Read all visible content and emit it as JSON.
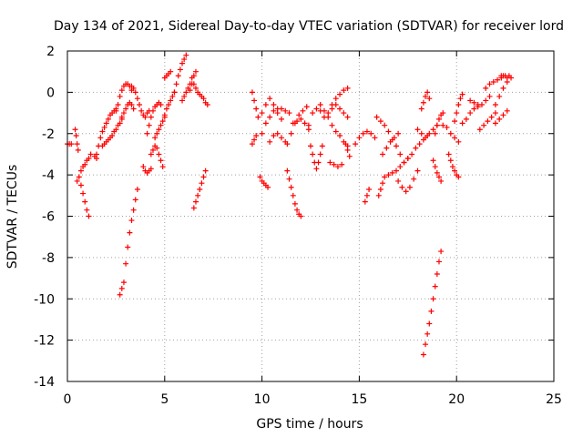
{
  "chart_data": {
    "type": "scatter",
    "title": "Day 134 of 2021, Sidereal Day-to-day VTEC variation (SDTVAR) for receiver lord",
    "xlabel": "GPS time / hours",
    "ylabel": "SDTVAR / TECUs",
    "xlim": [
      0,
      25
    ],
    "ylim": [
      -14,
      2
    ],
    "xticks": [
      0,
      5,
      10,
      15,
      20,
      25
    ],
    "yticks": [
      -14,
      -12,
      -10,
      -8,
      -6,
      -4,
      -2,
      0,
      2
    ],
    "xtick_labels": [
      "0",
      "5",
      "10",
      "15",
      "20",
      "25"
    ],
    "ytick_labels": [
      "-14",
      "-12",
      "-10",
      "-8",
      "-6",
      "-4",
      "-2",
      "0",
      "2"
    ],
    "grid": true,
    "marker": "+",
    "color": "#ff0000",
    "series": [
      {
        "name": "s1",
        "x": [
          0.0,
          0.1,
          0.2
        ],
        "y": [
          -2.5,
          -2.5,
          -2.5
        ]
      },
      {
        "name": "s2",
        "x": [
          0.4,
          0.45,
          0.5,
          0.55
        ],
        "y": [
          -1.8,
          -2.1,
          -2.5,
          -2.8
        ]
      },
      {
        "name": "s3",
        "x": [
          0.5,
          0.6,
          0.7,
          0.8,
          0.9,
          1.0,
          1.1
        ],
        "y": [
          -4.3,
          -4.1,
          -4.5,
          -4.9,
          -5.3,
          -5.7,
          -6.0
        ]
      },
      {
        "name": "s4",
        "x": [
          0.7,
          0.8,
          0.9,
          1.0,
          1.1,
          1.2,
          1.4,
          1.5
        ],
        "y": [
          -3.8,
          -3.6,
          -3.5,
          -3.3,
          -3.2,
          -3.0,
          -3.1,
          -3.0
        ]
      },
      {
        "name": "s5",
        "x": [
          1.5,
          1.6,
          1.7,
          1.8,
          1.9,
          2.0,
          2.1,
          2.2,
          2.3,
          2.4,
          2.5
        ],
        "y": [
          -3.2,
          -2.6,
          -2.2,
          -1.9,
          -1.7,
          -1.5,
          -1.3,
          -1.1,
          -1.0,
          -0.9,
          -0.8
        ]
      },
      {
        "name": "s6",
        "x": [
          1.8,
          1.9,
          2.0,
          2.1,
          2.2,
          2.3,
          2.4,
          2.5,
          2.6,
          2.7,
          2.8
        ],
        "y": [
          -2.6,
          -2.5,
          -2.4,
          -2.3,
          -2.2,
          -2.1,
          -1.9,
          -1.8,
          -1.6,
          -1.5,
          -1.3
        ]
      },
      {
        "name": "s7",
        "x": [
          2.5,
          2.6,
          2.7,
          2.8,
          2.9,
          3.0,
          3.1,
          3.2,
          3.3
        ],
        "y": [
          -0.9,
          -0.6,
          -0.2,
          0.1,
          0.3,
          0.4,
          0.4,
          0.3,
          0.1
        ]
      },
      {
        "name": "s8",
        "x": [
          2.7,
          2.8,
          2.9,
          3.0,
          3.1,
          3.2,
          3.3,
          3.4,
          3.5,
          3.6
        ],
        "y": [
          -9.8,
          -9.5,
          -9.2,
          -8.3,
          -7.5,
          -6.8,
          -6.2,
          -5.7,
          -5.2,
          -4.7
        ]
      },
      {
        "name": "s9",
        "x": [
          2.8,
          2.9,
          3.0,
          3.1,
          3.2,
          3.3,
          3.4
        ],
        "y": [
          -1.2,
          -1.0,
          -0.8,
          -0.6,
          -0.5,
          -0.6,
          -0.8
        ]
      },
      {
        "name": "s10",
        "x": [
          3.3,
          3.4,
          3.5,
          3.6,
          3.7,
          3.8,
          3.9,
          4.0,
          4.1,
          4.2
        ],
        "y": [
          0.3,
          0.2,
          0.0,
          -0.3,
          -0.6,
          -0.9,
          -1.1,
          -1.2,
          -1.0,
          -0.9
        ]
      },
      {
        "name": "s11",
        "x": [
          3.9,
          4.0,
          4.1,
          4.2,
          4.3
        ],
        "y": [
          -3.6,
          -3.8,
          -3.9,
          -3.8,
          -3.7
        ]
      },
      {
        "name": "s12",
        "x": [
          4.1,
          4.2,
          4.3,
          4.4,
          4.5,
          4.6,
          4.7,
          4.8
        ],
        "y": [
          -2.0,
          -1.6,
          -1.2,
          -0.9,
          -0.7,
          -0.6,
          -0.5,
          -0.6
        ]
      },
      {
        "name": "s13",
        "x": [
          4.3,
          4.4,
          4.5,
          4.6,
          4.7,
          4.8,
          4.9
        ],
        "y": [
          -3.0,
          -2.8,
          -2.6,
          -2.7,
          -3.0,
          -3.3,
          -3.6
        ]
      },
      {
        "name": "s14",
        "x": [
          4.5,
          4.6,
          4.7,
          4.8,
          4.9,
          5.0
        ],
        "y": [
          -2.2,
          -2.0,
          -1.8,
          -1.6,
          -1.4,
          -1.2
        ]
      },
      {
        "name": "s15",
        "x": [
          5.0,
          5.1,
          5.2,
          5.3,
          5.4,
          5.5
        ],
        "y": [
          -1.1,
          -0.8,
          -0.6,
          -0.4,
          -0.2,
          0.0
        ]
      },
      {
        "name": "s16",
        "x": [
          5.0,
          5.1,
          5.2,
          5.3
        ],
        "y": [
          0.7,
          0.8,
          0.9,
          1.0
        ]
      },
      {
        "name": "s17",
        "x": [
          5.5,
          5.6,
          5.7,
          5.8,
          5.9,
          6.0,
          6.1
        ],
        "y": [
          0.0,
          0.4,
          0.8,
          1.1,
          1.4,
          1.6,
          1.8
        ]
      },
      {
        "name": "s18",
        "x": [
          5.9,
          6.0,
          6.1,
          6.2,
          6.3,
          6.4
        ],
        "y": [
          -0.4,
          -0.2,
          0.0,
          0.2,
          0.4,
          0.7
        ]
      },
      {
        "name": "s19",
        "x": [
          6.3,
          6.4,
          6.5,
          6.6
        ],
        "y": [
          0.1,
          0.4,
          0.8,
          1.0
        ]
      },
      {
        "name": "s20",
        "x": [
          6.5,
          6.6,
          6.7,
          6.8,
          6.9,
          7.0,
          7.1,
          7.2
        ],
        "y": [
          0.4,
          0.2,
          0.0,
          -0.1,
          -0.2,
          -0.3,
          -0.5,
          -0.6
        ]
      },
      {
        "name": "s21",
        "x": [
          6.5,
          6.6,
          6.7,
          6.8,
          6.9,
          7.0,
          7.1
        ],
        "y": [
          -5.6,
          -5.3,
          -5.0,
          -4.7,
          -4.4,
          -4.1,
          -3.8
        ]
      },
      {
        "name": "s22",
        "x": [
          9.5,
          9.6,
          9.7
        ],
        "y": [
          -2.5,
          -2.3,
          -2.1
        ]
      },
      {
        "name": "s23",
        "x": [
          9.5,
          9.6,
          9.7,
          9.8
        ],
        "y": [
          0.0,
          -0.4,
          -0.8,
          -1.2
        ]
      },
      {
        "name": "s24",
        "x": [
          9.9,
          10.0,
          10.1,
          10.2,
          10.3
        ],
        "y": [
          -4.1,
          -4.3,
          -4.4,
          -4.5,
          -4.6
        ]
      },
      {
        "name": "s25",
        "x": [
          10.0,
          10.2,
          10.4,
          10.6,
          10.8,
          11.0,
          11.2,
          11.4
        ],
        "y": [
          -2.0,
          -1.5,
          -1.2,
          -0.9,
          -0.8,
          -0.8,
          -0.9,
          -1.0
        ]
      },
      {
        "name": "s26",
        "x": [
          10.0,
          10.2,
          10.4,
          10.6,
          10.8,
          11.0
        ],
        "y": [
          -1.0,
          -0.6,
          -0.3,
          -0.6,
          -1.0,
          -1.3
        ]
      },
      {
        "name": "s27",
        "x": [
          10.4,
          10.6,
          10.8,
          11.0,
          11.2
        ],
        "y": [
          -2.4,
          -2.1,
          -2.0,
          -2.2,
          -2.4
        ]
      },
      {
        "name": "s28",
        "x": [
          11.3,
          11.4,
          11.5,
          11.6,
          11.7,
          11.8,
          11.9,
          12.0
        ],
        "y": [
          -3.8,
          -4.2,
          -4.6,
          -5.0,
          -5.4,
          -5.7,
          -5.9,
          -6.0
        ]
      },
      {
        "name": "s29",
        "x": [
          11.3,
          11.5,
          11.7,
          11.9,
          12.1,
          12.3
        ],
        "y": [
          -2.5,
          -2.0,
          -1.5,
          -1.1,
          -0.9,
          -0.7
        ]
      },
      {
        "name": "s30",
        "x": [
          11.6,
          11.8,
          12.0,
          12.2,
          12.4
        ],
        "y": [
          -1.5,
          -1.4,
          -1.3,
          -1.5,
          -1.8
        ]
      },
      {
        "name": "s31",
        "x": [
          12.4,
          12.6,
          12.8,
          13.0,
          13.2
        ],
        "y": [
          -1.6,
          -1.0,
          -0.8,
          -0.9,
          -1.2
        ]
      },
      {
        "name": "s32",
        "x": [
          12.5,
          12.6,
          12.7,
          12.8,
          12.9,
          13.0,
          13.1
        ],
        "y": [
          -2.6,
          -3.0,
          -3.4,
          -3.7,
          -3.4,
          -3.0,
          -2.6
        ]
      },
      {
        "name": "s33",
        "x": [
          13.0,
          13.2,
          13.4,
          13.6,
          13.8,
          14.0,
          14.2,
          14.4
        ],
        "y": [
          -0.6,
          -0.9,
          -1.2,
          -1.6,
          -1.9,
          -2.1,
          -2.4,
          -2.6
        ]
      },
      {
        "name": "s34",
        "x": [
          13.4,
          13.6,
          13.8,
          14.0,
          14.2,
          14.4
        ],
        "y": [
          -1.0,
          -0.8,
          -0.6,
          -0.8,
          -1.0,
          -1.2
        ]
      },
      {
        "name": "s35",
        "x": [
          13.6,
          13.8,
          14.0,
          14.2,
          14.4
        ],
        "y": [
          -0.6,
          -0.3,
          -0.1,
          0.1,
          0.2
        ]
      },
      {
        "name": "s36",
        "x": [
          13.5,
          13.7,
          13.9,
          14.1
        ],
        "y": [
          -3.4,
          -3.5,
          -3.6,
          -3.5
        ]
      },
      {
        "name": "s37",
        "x": [
          14.3,
          14.4,
          14.5
        ],
        "y": [
          -2.5,
          -2.8,
          -3.1
        ]
      },
      {
        "name": "s38",
        "x": [
          14.8,
          15.0,
          15.2,
          15.4,
          15.6,
          15.8
        ],
        "y": [
          -2.5,
          -2.2,
          -2.0,
          -1.9,
          -2.0,
          -2.2
        ]
      },
      {
        "name": "s39",
        "x": [
          15.3,
          15.4,
          15.5
        ],
        "y": [
          -5.3,
          -5.0,
          -4.7
        ]
      },
      {
        "name": "s40",
        "x": [
          16.0,
          16.1,
          16.2,
          16.3
        ],
        "y": [
          -5.0,
          -4.7,
          -4.4,
          -4.1
        ]
      },
      {
        "name": "s41",
        "x": [
          15.9,
          16.1,
          16.3,
          16.5,
          16.7,
          16.9,
          17.1,
          17.3
        ],
        "y": [
          -1.2,
          -1.4,
          -1.6,
          -1.9,
          -2.3,
          -2.6,
          -3.0,
          -3.4
        ]
      },
      {
        "name": "s42",
        "x": [
          16.2,
          16.4,
          16.6,
          16.8,
          17.0
        ],
        "y": [
          -3.0,
          -2.7,
          -2.4,
          -2.2,
          -2.0
        ]
      },
      {
        "name": "s43",
        "x": [
          16.5,
          16.7,
          16.9,
          17.1,
          17.3,
          17.5
        ],
        "y": [
          -4.0,
          -3.9,
          -3.8,
          -3.6,
          -3.4,
          -3.2
        ]
      },
      {
        "name": "s44",
        "x": [
          17.0,
          17.2,
          17.4,
          17.6,
          17.8,
          18.0
        ],
        "y": [
          -4.3,
          -4.6,
          -4.8,
          -4.6,
          -4.2,
          -3.8
        ]
      },
      {
        "name": "s45",
        "x": [
          17.5,
          17.7,
          17.9,
          18.1,
          18.3,
          18.5
        ],
        "y": [
          -3.2,
          -3.0,
          -2.7,
          -2.5,
          -2.3,
          -2.1
        ]
      },
      {
        "name": "s46",
        "x": [
          18.0,
          18.2,
          18.4,
          18.6,
          18.8,
          19.0
        ],
        "y": [
          -1.8,
          -2.0,
          -2.2,
          -2.0,
          -1.8,
          -1.6
        ]
      },
      {
        "name": "s47",
        "x": [
          18.2,
          18.3,
          18.4,
          18.5,
          18.6
        ],
        "y": [
          -0.8,
          -0.5,
          -0.2,
          0.0,
          -0.3
        ]
      },
      {
        "name": "s48",
        "x": [
          18.3,
          18.4,
          18.5,
          18.6,
          18.7,
          18.8,
          18.9,
          19.0,
          19.1,
          19.2
        ],
        "y": [
          -12.7,
          -12.2,
          -11.7,
          -11.2,
          -10.6,
          -10.0,
          -9.4,
          -8.8,
          -8.2,
          -7.7
        ]
      },
      {
        "name": "s49",
        "x": [
          18.8,
          18.9,
          19.0,
          19.1,
          19.2
        ],
        "y": [
          -3.3,
          -3.6,
          -3.9,
          -4.1,
          -4.3
        ]
      },
      {
        "name": "s50",
        "x": [
          18.9,
          19.0,
          19.1,
          19.2,
          19.3
        ],
        "y": [
          -2.0,
          -1.6,
          -1.3,
          -1.1,
          -1.0
        ]
      },
      {
        "name": "s51",
        "x": [
          19.3,
          19.5,
          19.7,
          19.9,
          20.1
        ],
        "y": [
          -1.6,
          -1.7,
          -2.0,
          -2.2,
          -2.4
        ]
      },
      {
        "name": "s52",
        "x": [
          19.6,
          19.7,
          19.8,
          19.9,
          20.0,
          20.1
        ],
        "y": [
          -3.0,
          -3.3,
          -3.6,
          -3.8,
          -4.0,
          -4.1
        ]
      },
      {
        "name": "s53",
        "x": [
          19.9,
          20.0,
          20.1,
          20.2,
          20.3
        ],
        "y": [
          -1.4,
          -1.0,
          -0.6,
          -0.3,
          -0.1
        ]
      },
      {
        "name": "s54",
        "x": [
          20.3,
          20.5,
          20.7,
          20.9,
          21.1
        ],
        "y": [
          -1.5,
          -1.3,
          -1.0,
          -0.8,
          -0.6
        ]
      },
      {
        "name": "s55",
        "x": [
          20.7,
          20.9,
          21.1,
          21.3,
          21.5,
          21.7
        ],
        "y": [
          -0.4,
          -0.5,
          -0.7,
          -0.6,
          -0.4,
          -0.2
        ]
      },
      {
        "name": "s56",
        "x": [
          21.2,
          21.4,
          21.6,
          21.8,
          22.0
        ],
        "y": [
          -1.8,
          -1.6,
          -1.4,
          -1.2,
          -1.0
        ]
      },
      {
        "name": "s57",
        "x": [
          21.5,
          21.7,
          21.9,
          22.1,
          22.3
        ],
        "y": [
          0.2,
          0.4,
          0.5,
          0.6,
          0.7
        ]
      },
      {
        "name": "s58",
        "x": [
          22.0,
          22.2,
          22.4,
          22.6,
          22.8
        ],
        "y": [
          -0.6,
          -0.2,
          0.2,
          0.5,
          0.7
        ]
      },
      {
        "name": "s59",
        "x": [
          22.0,
          22.2,
          22.4,
          22.6
        ],
        "y": [
          -1.5,
          -1.3,
          -1.1,
          -0.9
        ]
      },
      {
        "name": "s60",
        "x": [
          22.3,
          22.4,
          22.5,
          22.6,
          22.7
        ],
        "y": [
          0.8,
          0.8,
          0.8,
          0.7,
          0.8
        ]
      }
    ]
  }
}
